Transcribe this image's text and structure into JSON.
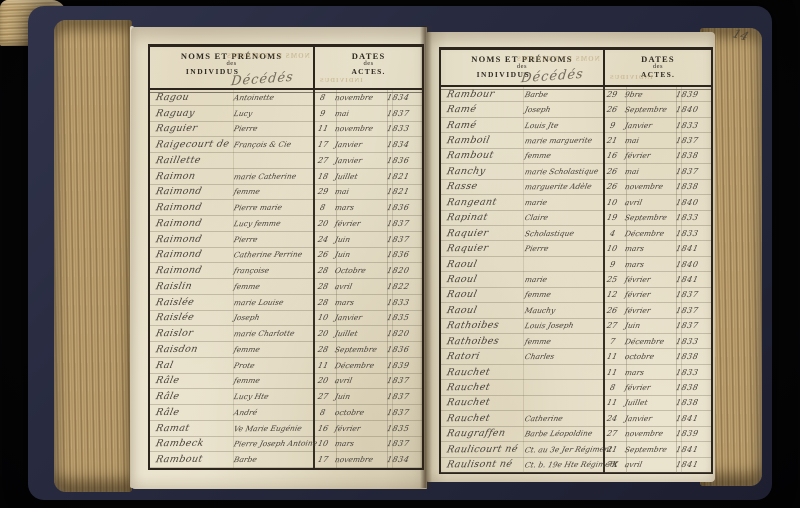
{
  "book": {
    "folio_annotation": "14",
    "left_page": {
      "header": {
        "names_title": "NOMS ET PRÉNOMS",
        "names_des": "des",
        "names_individus": "INDIVIDUS",
        "handwritten_category": "Décédés",
        "dates_title": "DATES",
        "dates_des": "des",
        "dates_actes": "ACTES."
      },
      "rows": [
        {
          "surname": "Ragou",
          "firstname": "Antoinette",
          "day": "8",
          "month": "novembre",
          "year": "1834"
        },
        {
          "surname": "Raguay",
          "firstname": "Lucy",
          "day": "9",
          "month": "mai",
          "year": "1837"
        },
        {
          "surname": "Raguier",
          "firstname": "Pierre",
          "day": "11",
          "month": "novembre",
          "year": "1833"
        },
        {
          "surname": "Raigecourt de",
          "firstname": "François & Cie",
          "day": "17",
          "month": "Janvier",
          "year": "1834"
        },
        {
          "surname": "Raillette",
          "firstname": "",
          "day": "27",
          "month": "Janvier",
          "year": "1836"
        },
        {
          "surname": "Raimon",
          "firstname": "marie Catherine",
          "day": "18",
          "month": "Juillet",
          "year": "1821"
        },
        {
          "surname": "Raimond",
          "firstname": "femme",
          "day": "29",
          "month": "mai",
          "year": "1821"
        },
        {
          "surname": "Raimond",
          "firstname": "Pierre marie",
          "day": "8",
          "month": "mars",
          "year": "1836"
        },
        {
          "surname": "Raimond",
          "firstname": "Lucy femme",
          "day": "20",
          "month": "février",
          "year": "1837"
        },
        {
          "surname": "Raimond",
          "firstname": "Pierre",
          "day": "24",
          "month": "Juin",
          "year": "1837"
        },
        {
          "surname": "Raimond",
          "firstname": "Catherine Perrine",
          "day": "26",
          "month": "Juin",
          "year": "1836"
        },
        {
          "surname": "Raimond",
          "firstname": "françoise",
          "day": "28",
          "month": "Octobre",
          "year": "1820"
        },
        {
          "surname": "Raislin",
          "firstname": "femme",
          "day": "28",
          "month": "avril",
          "year": "1822"
        },
        {
          "surname": "Raislée",
          "firstname": "marie Louise",
          "day": "28",
          "month": "mars",
          "year": "1833"
        },
        {
          "surname": "Raislée",
          "firstname": "Joseph",
          "day": "10",
          "month": "Janvier",
          "year": "1835"
        },
        {
          "surname": "Raislor",
          "firstname": "marie Charlotte",
          "day": "20",
          "month": "Juillet",
          "year": "1820"
        },
        {
          "surname": "Raisdon",
          "firstname": "femme",
          "day": "28",
          "month": "Septembre",
          "year": "1836"
        },
        {
          "surname": "Ral",
          "firstname": "Prote",
          "day": "11",
          "month": "Décembre",
          "year": "1839"
        },
        {
          "surname": "Râle",
          "firstname": "femme",
          "day": "20",
          "month": "avril",
          "year": "1837"
        },
        {
          "surname": "Râle",
          "firstname": "Lucy Hte",
          "day": "27",
          "month": "Juin",
          "year": "1837"
        },
        {
          "surname": "Râle",
          "firstname": "André",
          "day": "8",
          "month": "octobre",
          "year": "1837"
        },
        {
          "surname": "Ramat",
          "firstname": "Ve Marie Eugénie",
          "day": "16",
          "month": "février",
          "year": "1835"
        },
        {
          "surname": "Rambeck",
          "firstname": "Pierre Joseph Antoine",
          "day": "10",
          "month": "mars",
          "year": "1837"
        },
        {
          "surname": "Rambout",
          "firstname": "Barbe",
          "day": "17",
          "month": "novembre",
          "year": "1834"
        }
      ]
    },
    "right_page": {
      "header": {
        "names_title": "NOMS ET PRÉNOMS",
        "names_des": "des",
        "names_individus": "INDIVIDUS",
        "handwritten_category": "Décédés",
        "dates_title": "DATES",
        "dates_des": "des",
        "dates_actes": "ACTES."
      },
      "rows": [
        {
          "surname": "Rambour",
          "firstname": "Barbe",
          "day": "29",
          "month": "9bre",
          "year": "1839"
        },
        {
          "surname": "Ramé",
          "firstname": "Joseph",
          "day": "26",
          "month": "Septembre",
          "year": "1840"
        },
        {
          "surname": "Ramé",
          "firstname": "Louis Jte",
          "day": "9",
          "month": "Janvier",
          "year": "1833"
        },
        {
          "surname": "Ramboil",
          "firstname": "marie marguerite",
          "day": "21",
          "month": "mai",
          "year": "1837"
        },
        {
          "surname": "Rambout",
          "firstname": "femme",
          "day": "16",
          "month": "février",
          "year": "1838"
        },
        {
          "surname": "Ranchy",
          "firstname": "marie Scholastique",
          "day": "26",
          "month": "mai",
          "year": "1837"
        },
        {
          "surname": "Rasse",
          "firstname": "marguerite Adèle",
          "day": "26",
          "month": "novembre",
          "year": "1838"
        },
        {
          "surname": "Rangeant",
          "firstname": "marie",
          "day": "10",
          "month": "avril",
          "year": "1840"
        },
        {
          "surname": "Rapinat",
          "firstname": "Claire",
          "day": "19",
          "month": "Septembre",
          "year": "1833"
        },
        {
          "surname": "Raquier",
          "firstname": "Scholastique",
          "day": "4",
          "month": "Décembre",
          "year": "1833"
        },
        {
          "surname": "Raquier",
          "firstname": "Pierre",
          "day": "10",
          "month": "mars",
          "year": "1841"
        },
        {
          "surname": "Raoul",
          "firstname": "",
          "day": "9",
          "month": "mars",
          "year": "1840"
        },
        {
          "surname": "Raoul",
          "firstname": "marie",
          "day": "25",
          "month": "février",
          "year": "1841"
        },
        {
          "surname": "Raoul",
          "firstname": "femme",
          "day": "12",
          "month": "février",
          "year": "1837"
        },
        {
          "surname": "Raoul",
          "firstname": "Mauchy",
          "day": "26",
          "month": "février",
          "year": "1837"
        },
        {
          "surname": "Rathoibes",
          "firstname": "Louis Joseph",
          "day": "27",
          "month": "Juin",
          "year": "1837"
        },
        {
          "surname": "Rathoibes",
          "firstname": "femme",
          "day": "7",
          "month": "Décembre",
          "year": "1833"
        },
        {
          "surname": "Ratori",
          "firstname": "Charles",
          "day": "11",
          "month": "octobre",
          "year": "1838"
        },
        {
          "surname": "Rauchet",
          "firstname": "",
          "day": "11",
          "month": "mars",
          "year": "1833"
        },
        {
          "surname": "Rauchet",
          "firstname": "",
          "day": "8",
          "month": "février",
          "year": "1838"
        },
        {
          "surname": "Rauchet",
          "firstname": "",
          "day": "11",
          "month": "Juillet",
          "year": "1838"
        },
        {
          "surname": "Rauchet",
          "firstname": "Catherine",
          "day": "24",
          "month": "Janvier",
          "year": "1841"
        },
        {
          "surname": "Raugraffen",
          "firstname": "Barbe Léopoldine",
          "day": "27",
          "month": "novembre",
          "year": "1839"
        },
        {
          "surname": "Raulicourt né",
          "firstname": "Ct. au 3e Jer Régiment",
          "day": "21",
          "month": "Septembre",
          "year": "1841"
        },
        {
          "surname": "Raulisont né",
          "firstname": "Ct. b. 19e Hte Régiment",
          "day": "7X",
          "month": "avril",
          "year": "1841"
        }
      ]
    }
  },
  "colors": {
    "background": "#050506",
    "cover": "#282b40",
    "page": "#ece5d0",
    "page_edge": "#b89a67",
    "ink": "#48423a",
    "printed_text": "#2e2a22",
    "table_border": "#2b251d"
  }
}
